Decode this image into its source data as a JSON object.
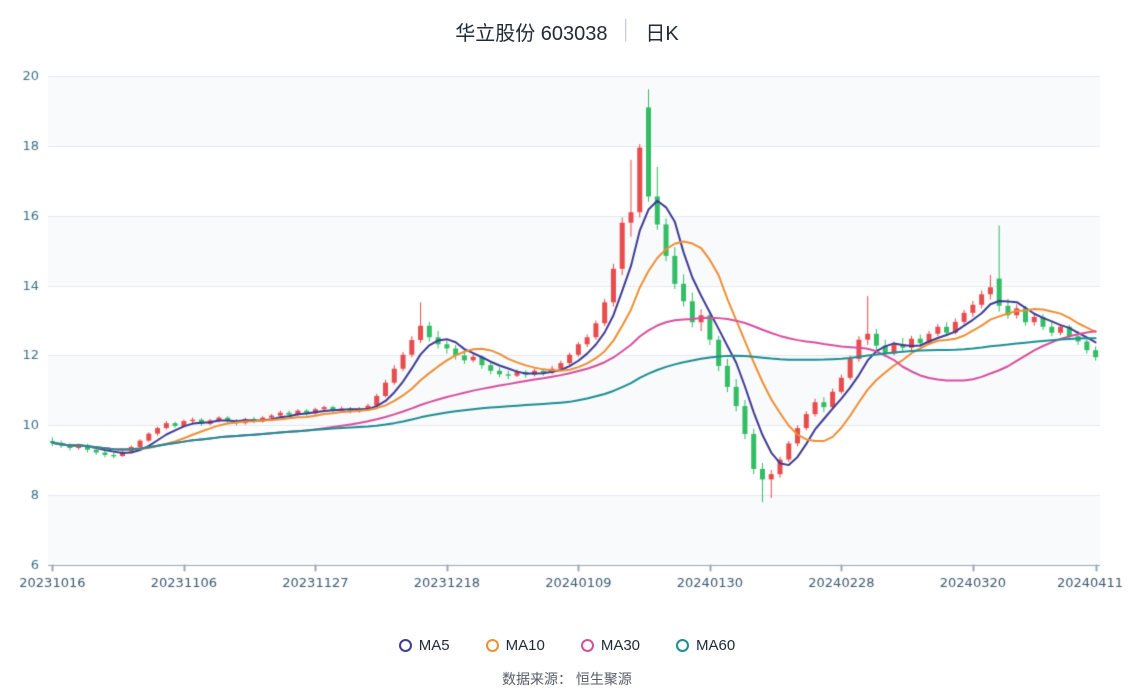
{
  "page": {
    "title_left": "华立股份 603038",
    "title_divider": "│",
    "title_right": "日K",
    "source_note": "数据来源： 恒生聚源"
  },
  "chart_data": {
    "type": "candlestick",
    "title": "华立股份 603038 │ 日K",
    "ylim": [
      6,
      20
    ],
    "y_ticks": [
      6,
      8,
      10,
      12,
      14,
      16,
      18,
      20
    ],
    "x_tick_labels": [
      "20231016",
      "20231106",
      "20231127",
      "20231218",
      "20240109",
      "20240130",
      "20240228",
      "20240320",
      "20240411"
    ],
    "x_tick_indices": [
      0,
      15,
      30,
      45,
      60,
      75,
      90,
      105,
      119
    ],
    "grid": true,
    "legend_position": "bottom",
    "up_color": "#e84c4c",
    "down_color": "#33bd65",
    "ohlc": [
      [
        9.55,
        9.65,
        9.4,
        9.5
      ],
      [
        9.5,
        9.56,
        9.35,
        9.42
      ],
      [
        9.42,
        9.48,
        9.28,
        9.35
      ],
      [
        9.35,
        9.48,
        9.3,
        9.44
      ],
      [
        9.44,
        9.47,
        9.22,
        9.3
      ],
      [
        9.3,
        9.36,
        9.15,
        9.22
      ],
      [
        9.22,
        9.28,
        9.08,
        9.15
      ],
      [
        9.15,
        9.22,
        9.05,
        9.12
      ],
      [
        9.12,
        9.28,
        9.1,
        9.24
      ],
      [
        9.24,
        9.42,
        9.2,
        9.38
      ],
      [
        9.38,
        9.6,
        9.35,
        9.56
      ],
      [
        9.56,
        9.8,
        9.52,
        9.76
      ],
      [
        9.76,
        9.96,
        9.7,
        9.92
      ],
      [
        9.92,
        10.12,
        9.88,
        10.06
      ],
      [
        10.06,
        10.1,
        9.92,
        9.98
      ],
      [
        9.98,
        10.16,
        9.94,
        10.12
      ],
      [
        10.12,
        10.22,
        10.02,
        10.16
      ],
      [
        10.16,
        10.2,
        9.98,
        10.04
      ],
      [
        10.04,
        10.18,
        10.0,
        10.14
      ],
      [
        10.14,
        10.26,
        10.08,
        10.22
      ],
      [
        10.22,
        10.26,
        10.06,
        10.12
      ],
      [
        10.12,
        10.18,
        10.0,
        10.06
      ],
      [
        10.06,
        10.22,
        10.02,
        10.18
      ],
      [
        10.18,
        10.24,
        10.06,
        10.12
      ],
      [
        10.12,
        10.26,
        10.08,
        10.22
      ],
      [
        10.22,
        10.32,
        10.16,
        10.28
      ],
      [
        10.28,
        10.42,
        10.24,
        10.36
      ],
      [
        10.36,
        10.42,
        10.24,
        10.3
      ],
      [
        10.3,
        10.46,
        10.26,
        10.42
      ],
      [
        10.42,
        10.46,
        10.28,
        10.34
      ],
      [
        10.34,
        10.5,
        10.3,
        10.46
      ],
      [
        10.46,
        10.56,
        10.4,
        10.52
      ],
      [
        10.52,
        10.56,
        10.36,
        10.42
      ],
      [
        10.42,
        10.54,
        10.38,
        10.48
      ],
      [
        10.48,
        10.52,
        10.34,
        10.4
      ],
      [
        10.4,
        10.52,
        10.36,
        10.46
      ],
      [
        10.46,
        10.62,
        10.42,
        10.56
      ],
      [
        10.56,
        10.9,
        10.52,
        10.84
      ],
      [
        10.84,
        11.3,
        10.8,
        11.22
      ],
      [
        11.22,
        11.72,
        11.16,
        11.62
      ],
      [
        11.62,
        12.1,
        11.55,
        12.02
      ],
      [
        12.02,
        12.55,
        11.95,
        12.44
      ],
      [
        12.44,
        13.52,
        12.35,
        12.85
      ],
      [
        12.85,
        12.96,
        12.4,
        12.52
      ],
      [
        12.52,
        12.7,
        12.2,
        12.32
      ],
      [
        12.32,
        12.46,
        12.05,
        12.2
      ],
      [
        12.2,
        12.3,
        11.88,
        12.0
      ],
      [
        12.0,
        12.15,
        11.76,
        11.86
      ],
      [
        11.86,
        12.06,
        11.8,
        11.96
      ],
      [
        11.96,
        12.0,
        11.62,
        11.72
      ],
      [
        11.72,
        11.8,
        11.46,
        11.56
      ],
      [
        11.56,
        11.66,
        11.38,
        11.46
      ],
      [
        11.46,
        11.56,
        11.32,
        11.42
      ],
      [
        11.42,
        11.6,
        11.38,
        11.52
      ],
      [
        11.52,
        11.58,
        11.36,
        11.45
      ],
      [
        11.45,
        11.62,
        11.4,
        11.56
      ],
      [
        11.56,
        11.62,
        11.42,
        11.5
      ],
      [
        11.5,
        11.7,
        11.46,
        11.62
      ],
      [
        11.62,
        11.85,
        11.58,
        11.78
      ],
      [
        11.78,
        12.08,
        11.72,
        12.02
      ],
      [
        12.02,
        12.38,
        11.96,
        12.32
      ],
      [
        12.32,
        12.6,
        12.24,
        12.52
      ],
      [
        12.52,
        13.0,
        12.45,
        12.92
      ],
      [
        12.92,
        13.62,
        12.84,
        13.52
      ],
      [
        13.52,
        14.62,
        13.4,
        14.48
      ],
      [
        14.48,
        15.95,
        14.3,
        15.8
      ],
      [
        15.8,
        17.6,
        15.4,
        16.1
      ],
      [
        16.1,
        18.05,
        15.95,
        17.95
      ],
      [
        19.1,
        19.62,
        16.4,
        16.55
      ],
      [
        16.55,
        17.4,
        15.6,
        15.75
      ],
      [
        15.75,
        15.92,
        14.7,
        14.85
      ],
      [
        14.85,
        15.1,
        13.9,
        14.05
      ],
      [
        14.05,
        14.32,
        13.4,
        13.55
      ],
      [
        13.55,
        13.8,
        12.8,
        12.95
      ],
      [
        12.95,
        13.32,
        12.7,
        13.15
      ],
      [
        13.15,
        13.22,
        12.3,
        12.45
      ],
      [
        12.45,
        12.56,
        11.55,
        11.7
      ],
      [
        11.7,
        11.9,
        10.95,
        11.1
      ],
      [
        11.1,
        11.32,
        10.4,
        10.55
      ],
      [
        10.55,
        10.72,
        9.6,
        9.75
      ],
      [
        9.75,
        9.9,
        8.6,
        8.75
      ],
      [
        8.75,
        8.92,
        7.8,
        8.45
      ],
      [
        8.45,
        8.72,
        7.92,
        8.6
      ],
      [
        8.6,
        9.1,
        8.5,
        9.02
      ],
      [
        9.02,
        9.55,
        8.95,
        9.48
      ],
      [
        9.48,
        10.0,
        9.4,
        9.92
      ],
      [
        9.92,
        10.4,
        9.85,
        10.32
      ],
      [
        10.32,
        10.76,
        10.25,
        10.66
      ],
      [
        10.66,
        10.8,
        10.38,
        10.52
      ],
      [
        10.52,
        11.05,
        10.46,
        10.96
      ],
      [
        10.96,
        11.45,
        10.9,
        11.36
      ],
      [
        11.36,
        12.0,
        11.3,
        11.9
      ],
      [
        11.9,
        12.55,
        11.82,
        12.45
      ],
      [
        12.45,
        13.7,
        12.3,
        12.62
      ],
      [
        12.62,
        12.76,
        12.15,
        12.28
      ],
      [
        12.28,
        12.45,
        11.95,
        12.05
      ],
      [
        12.05,
        12.4,
        12.0,
        12.32
      ],
      [
        12.32,
        12.5,
        12.1,
        12.22
      ],
      [
        12.22,
        12.56,
        12.15,
        12.48
      ],
      [
        12.48,
        12.6,
        12.24,
        12.35
      ],
      [
        12.35,
        12.7,
        12.3,
        12.62
      ],
      [
        12.62,
        12.9,
        12.55,
        12.82
      ],
      [
        12.82,
        12.95,
        12.55,
        12.65
      ],
      [
        12.65,
        13.06,
        12.6,
        12.96
      ],
      [
        12.96,
        13.3,
        12.9,
        13.22
      ],
      [
        13.22,
        13.56,
        13.1,
        13.45
      ],
      [
        13.45,
        13.86,
        13.35,
        13.75
      ],
      [
        13.75,
        14.3,
        13.6,
        13.95
      ],
      [
        14.2,
        15.72,
        13.25,
        13.42
      ],
      [
        13.42,
        13.62,
        13.05,
        13.15
      ],
      [
        13.15,
        13.46,
        13.05,
        13.35
      ],
      [
        13.35,
        13.42,
        12.85,
        12.95
      ],
      [
        12.95,
        13.2,
        12.85,
        13.1
      ],
      [
        13.1,
        13.18,
        12.72,
        12.82
      ],
      [
        12.82,
        12.96,
        12.55,
        12.65
      ],
      [
        12.65,
        12.9,
        12.58,
        12.82
      ],
      [
        12.82,
        12.88,
        12.45,
        12.55
      ],
      [
        12.55,
        12.7,
        12.3,
        12.4
      ],
      [
        12.4,
        12.52,
        12.05,
        12.15
      ],
      [
        12.15,
        12.26,
        11.85,
        11.95
      ]
    ],
    "ma_series": [
      {
        "name": "MA5",
        "window": 5,
        "color": "#3f3c94"
      },
      {
        "name": "MA10",
        "window": 10,
        "color": "#ef8f35"
      },
      {
        "name": "MA30",
        "window": 30,
        "color": "#d6509e"
      },
      {
        "name": "MA60",
        "window": 60,
        "color": "#1d8e93"
      }
    ]
  }
}
